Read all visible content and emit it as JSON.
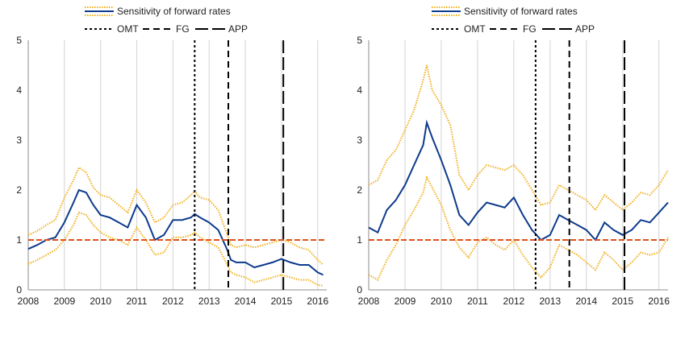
{
  "legend": {
    "sensitivity": "Sensitivity of forward rates",
    "omt": "OMT",
    "fg": "FG",
    "app": "APP"
  },
  "colors": {
    "series": "#0d3a8c",
    "band": "#f2b01e",
    "reference": "#e0501b",
    "events": "#000000",
    "grid": "#d3d3d3"
  },
  "chart_data": [
    {
      "type": "line",
      "title": "",
      "xlabel": "",
      "ylabel": "",
      "xlim": [
        2008.0,
        2016.25
      ],
      "ylim": [
        0,
        5
      ],
      "x_ticks": [
        "2008",
        "2009",
        "2010",
        "2011",
        "2012",
        "2013",
        "2014",
        "2015",
        "2016"
      ],
      "y_ticks": [
        "0",
        "1",
        "2",
        "3",
        "4",
        "5"
      ],
      "grid": "vertical",
      "legend_position": "top-center",
      "reference_line": 1,
      "events": [
        {
          "name": "OMT",
          "x": 2012.6
        },
        {
          "name": "FG",
          "x": 2013.53
        },
        {
          "name": "APP",
          "x": 2015.05
        }
      ],
      "x": [
        2008.0,
        2008.25,
        2008.5,
        2008.75,
        2009.0,
        2009.25,
        2009.4,
        2009.6,
        2009.8,
        2010.0,
        2010.25,
        2010.5,
        2010.75,
        2011.0,
        2011.25,
        2011.5,
        2011.75,
        2012.0,
        2012.25,
        2012.5,
        2012.6,
        2012.75,
        2013.0,
        2013.25,
        2013.5,
        2013.6,
        2013.75,
        2014.0,
        2014.25,
        2014.5,
        2014.75,
        2015.0,
        2015.25,
        2015.5,
        2015.75,
        2016.0,
        2016.15
      ],
      "series": [
        {
          "name": "Sensitivity of forward rates",
          "values": [
            0.82,
            0.9,
            1.0,
            1.05,
            1.35,
            1.75,
            2.0,
            1.95,
            1.7,
            1.5,
            1.45,
            1.35,
            1.25,
            1.7,
            1.45,
            1.0,
            1.1,
            1.4,
            1.4,
            1.45,
            1.52,
            1.45,
            1.35,
            1.2,
            0.8,
            0.6,
            0.55,
            0.55,
            0.45,
            0.5,
            0.55,
            0.62,
            0.55,
            0.5,
            0.5,
            0.35,
            0.3
          ]
        },
        {
          "name": "upper band",
          "values": [
            1.1,
            1.18,
            1.3,
            1.4,
            1.85,
            2.2,
            2.45,
            2.35,
            2.05,
            1.9,
            1.85,
            1.7,
            1.55,
            2.0,
            1.75,
            1.35,
            1.45,
            1.7,
            1.75,
            1.9,
            1.98,
            1.85,
            1.8,
            1.6,
            1.1,
            0.9,
            0.85,
            0.9,
            0.85,
            0.9,
            0.95,
            1.0,
            0.95,
            0.85,
            0.8,
            0.6,
            0.5
          ]
        },
        {
          "name": "lower band",
          "values": [
            0.52,
            0.6,
            0.7,
            0.8,
            1.0,
            1.3,
            1.55,
            1.5,
            1.3,
            1.15,
            1.05,
            1.0,
            0.9,
            1.25,
            1.0,
            0.7,
            0.75,
            1.05,
            1.05,
            1.1,
            1.15,
            1.05,
            0.95,
            0.85,
            0.5,
            0.35,
            0.3,
            0.25,
            0.15,
            0.2,
            0.25,
            0.3,
            0.25,
            0.2,
            0.2,
            0.1,
            0.08
          ]
        }
      ]
    },
    {
      "type": "line",
      "title": "",
      "xlabel": "",
      "ylabel": "",
      "xlim": [
        2008.0,
        2016.25
      ],
      "ylim": [
        0,
        5
      ],
      "x_ticks": [
        "2008",
        "2009",
        "2010",
        "2011",
        "2012",
        "2013",
        "2014",
        "2015",
        "2016"
      ],
      "y_ticks": [
        "0",
        "1",
        "2",
        "3",
        "4",
        "5"
      ],
      "grid": "vertical",
      "legend_position": "top-center",
      "reference_line": 1,
      "events": [
        {
          "name": "OMT",
          "x": 2012.6
        },
        {
          "name": "FG",
          "x": 2013.53
        },
        {
          "name": "APP",
          "x": 2015.05
        }
      ],
      "x": [
        2008.0,
        2008.25,
        2008.5,
        2008.75,
        2009.0,
        2009.25,
        2009.5,
        2009.6,
        2009.75,
        2010.0,
        2010.25,
        2010.5,
        2010.75,
        2011.0,
        2011.25,
        2011.5,
        2011.75,
        2012.0,
        2012.25,
        2012.5,
        2012.75,
        2013.0,
        2013.25,
        2013.5,
        2013.75,
        2014.0,
        2014.25,
        2014.5,
        2014.75,
        2015.0,
        2015.25,
        2015.5,
        2015.75,
        2016.0,
        2016.25
      ],
      "series": [
        {
          "name": "Sensitivity of forward rates",
          "values": [
            1.25,
            1.15,
            1.6,
            1.8,
            2.1,
            2.5,
            2.9,
            3.35,
            3.05,
            2.6,
            2.1,
            1.5,
            1.3,
            1.55,
            1.75,
            1.7,
            1.65,
            1.85,
            1.5,
            1.2,
            1.0,
            1.1,
            1.5,
            1.4,
            1.3,
            1.2,
            1.0,
            1.35,
            1.2,
            1.1,
            1.2,
            1.4,
            1.35,
            1.55,
            1.75
          ]
        },
        {
          "name": "upper band",
          "values": [
            2.1,
            2.2,
            2.6,
            2.8,
            3.2,
            3.6,
            4.2,
            4.5,
            4.0,
            3.7,
            3.3,
            2.3,
            2.0,
            2.3,
            2.5,
            2.45,
            2.4,
            2.5,
            2.3,
            2.0,
            1.7,
            1.75,
            2.1,
            2.0,
            1.9,
            1.8,
            1.6,
            1.9,
            1.75,
            1.6,
            1.75,
            1.95,
            1.9,
            2.1,
            2.4
          ]
        },
        {
          "name": "lower band",
          "values": [
            0.3,
            0.2,
            0.6,
            0.9,
            1.3,
            1.6,
            1.95,
            2.25,
            2.05,
            1.7,
            1.2,
            0.85,
            0.65,
            0.95,
            1.05,
            0.9,
            0.8,
            1.0,
            0.7,
            0.45,
            0.25,
            0.45,
            0.9,
            0.8,
            0.7,
            0.55,
            0.4,
            0.75,
            0.6,
            0.4,
            0.55,
            0.75,
            0.7,
            0.75,
            1.05
          ]
        }
      ]
    }
  ]
}
